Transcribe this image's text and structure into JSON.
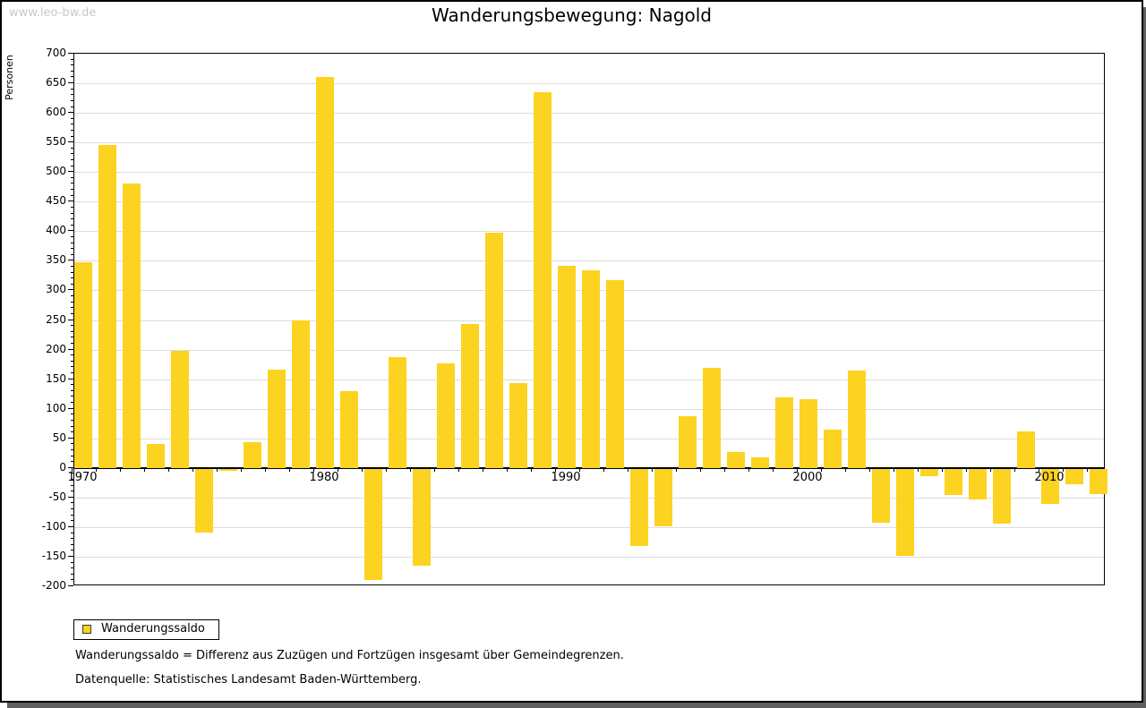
{
  "watermark": "www.leo-bw.de",
  "title": "Wanderungsbewegung: Nagold",
  "y_axis_label": "Personen",
  "legend": {
    "label": "Wanderungssaldo"
  },
  "footnotes": {
    "definition": "Wanderungssaldo = Differenz aus Zuzügen und Fortzügen insgesamt über Gemeindegrenzen.",
    "source": "Datenquelle: Statistisches Landesamt Baden-Württemberg."
  },
  "colors": {
    "bar": "#FCD320",
    "grid": "#dddddd",
    "axis": "#000000",
    "watermark": "#c9c9c9",
    "shadow": "#606060"
  },
  "chart_data": {
    "type": "bar",
    "title": "Wanderungsbewegung: Nagold",
    "xlabel": "",
    "ylabel": "Personen",
    "ylim": [
      -200,
      700
    ],
    "y_tick_step": 50,
    "y_minor_tick_step": 10,
    "grid": true,
    "legend_position": "bottom-left",
    "series_name": "Wanderungssaldo",
    "bar_color": "#FCD320",
    "categories": [
      1970,
      1971,
      1972,
      1973,
      1974,
      1975,
      1976,
      1977,
      1978,
      1979,
      1980,
      1981,
      1982,
      1983,
      1984,
      1985,
      1986,
      1987,
      1988,
      1989,
      1990,
      1991,
      1992,
      1993,
      1994,
      1995,
      1996,
      1997,
      1998,
      1999,
      2000,
      2001,
      2002,
      2003,
      2004,
      2005,
      2006,
      2007,
      2008,
      2009,
      2010,
      2011,
      2012
    ],
    "values": [
      348,
      545,
      480,
      40,
      198,
      -107,
      -3,
      43,
      166,
      249,
      660,
      129,
      -188,
      187,
      -164,
      177,
      243,
      398,
      144,
      635,
      341,
      334,
      317,
      -130,
      -97,
      88,
      169,
      27,
      18,
      119,
      116,
      64,
      164,
      -91,
      -147,
      -13,
      -44,
      -52,
      -92,
      62,
      -59,
      -26,
      -42
    ],
    "x_tick_labels": [
      "1970",
      "1980",
      "1990",
      "2000",
      "2010"
    ]
  }
}
